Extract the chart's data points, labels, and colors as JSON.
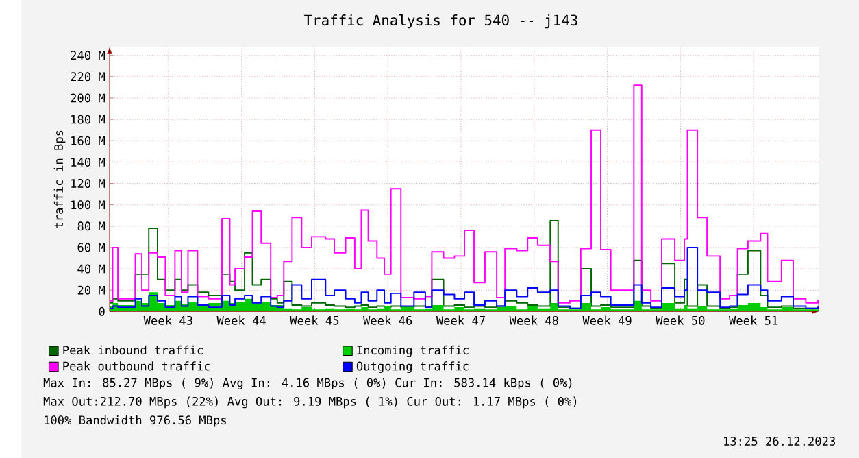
{
  "chart_data": {
    "type": "step",
    "title": "Traffic Analysis for 540 -- j143",
    "ylabel": "traffic in Bps",
    "x": [
      "2023-10-20T22:00",
      "2023-10-21T04:00",
      "2023-10-21T16:00",
      "2023-10-23T08:00",
      "2023-10-23T23:00",
      "2023-10-24T15:00",
      "2023-10-25T11:00",
      "2023-10-26T05:00",
      "2023-10-27T03:00",
      "2023-10-27T18:00",
      "2023-10-28T09:00",
      "2023-10-29T07:00",
      "2023-10-30T08:00",
      "2023-10-31T15:00",
      "2023-11-01T09:00",
      "2023-11-01T21:00",
      "2023-11-02T19:00",
      "2023-11-03T13:00",
      "2023-11-04T09:00",
      "2023-11-05T07:00",
      "2023-11-05T22:00",
      "2023-11-06T13:00",
      "2023-11-07T08:00",
      "2023-11-08T06:00",
      "2023-11-09T05:00",
      "2023-11-10T13:00",
      "2023-11-11T09:00",
      "2023-11-12T11:00",
      "2023-11-13T08:00",
      "2023-11-13T23:00",
      "2023-11-14T15:00",
      "2023-11-15T11:00",
      "2023-11-16T04:00",
      "2023-11-16T19:00",
      "2023-11-17T18:00",
      "2023-11-19T00:00",
      "2023-11-20T02:00",
      "2023-11-20T17:00",
      "2023-11-21T20:00",
      "2023-11-22T21:00",
      "2023-11-23T20:00",
      "2023-11-24T18:00",
      "2023-11-25T19:00",
      "2023-11-26T22:00",
      "2023-11-27T17:00",
      "2023-11-28T20:00",
      "2023-11-29T21:00",
      "2023-11-30T20:00",
      "2023-12-02T01:00",
      "2023-12-02T19:00",
      "2023-12-03T22:00",
      "2023-12-04T23:00",
      "2023-12-05T23:00",
      "2023-12-06T21:00",
      "2023-12-07T20:00",
      "2023-12-10T01:00",
      "2023-12-10T19:00",
      "2023-12-11T16:00",
      "2023-12-12T17:00",
      "2023-12-13T23:00",
      "2023-12-14T21:00",
      "2023-12-15T04:00",
      "2023-12-16T03:00",
      "2023-12-17T01:00",
      "2023-12-18T07:00",
      "2023-12-19T05:00",
      "2023-12-19T23:00",
      "2023-12-20T23:00",
      "2023-12-22T04:00",
      "2023-12-22T20:00",
      "2023-12-24T04:00",
      "2023-12-25T07:00",
      "2023-12-26T12:00",
      "2023-12-27T15:00",
      "2023-12-27T18:00"
    ],
    "series": [
      {
        "name": "Peak inbound traffic",
        "color": "#006600",
        "values": [
          8,
          12,
          10,
          35,
          null,
          78,
          30,
          20,
          30,
          20,
          25,
          18,
          15,
          35,
          28,
          20,
          55,
          25,
          30,
          12,
          8,
          28,
          6,
          5,
          8,
          6,
          5,
          4,
          5,
          6,
          4,
          5,
          4,
          5,
          4,
          5,
          4,
          30,
          5,
          6,
          4,
          5,
          4,
          5,
          10,
          8,
          6,
          5,
          85,
          4,
          3,
          40,
          5,
          6,
          4,
          48,
          5,
          3,
          45,
          8,
          30,
          5,
          25,
          5,
          3,
          4,
          35,
          57,
          15,
          4,
          5,
          3,
          3,
          3,
          2
        ]
      },
      {
        "name": "Incoming traffic",
        "type": "area",
        "color": "#00cc00",
        "values": [
          5,
          8,
          6,
          10,
          8,
          18,
          8,
          6,
          10,
          7,
          9,
          6,
          8,
          10,
          8,
          9,
          12,
          8,
          9,
          6,
          6,
          3,
          2,
          4,
          2,
          3,
          2,
          3,
          2,
          4,
          2,
          3,
          5,
          2,
          5,
          2,
          3,
          6,
          2,
          4,
          2,
          3,
          2,
          4,
          5,
          2,
          5,
          3,
          8,
          2,
          2,
          8,
          2,
          4,
          2,
          10,
          2,
          2,
          8,
          3,
          6,
          3,
          5,
          2,
          2,
          3,
          6,
          8,
          4,
          2,
          4,
          2,
          2,
          2,
          1
        ]
      },
      {
        "name": "Peak outbound traffic",
        "color": "#ff00ff",
        "values": [
          10,
          60,
          12,
          54,
          20,
          55,
          51,
          15,
          57,
          18,
          57,
          14,
          12,
          87,
          25,
          40,
          51,
          94,
          64,
          13,
          15,
          47,
          88,
          60,
          70,
          68,
          55,
          69,
          40,
          95,
          66,
          50,
          35,
          115,
          13,
          12,
          14,
          56,
          50,
          52,
          76,
          27,
          56,
          13,
          59,
          57,
          69,
          62,
          47,
          8,
          10,
          59,
          170,
          58,
          20,
          212,
          20,
          10,
          68,
          48,
          68,
          170,
          88,
          52,
          12,
          15,
          59,
          66,
          73,
          28,
          48,
          12,
          8,
          10,
          3
        ]
      },
      {
        "name": "Outgoing traffic",
        "color": "#0000ff",
        "values": [
          3,
          5,
          4,
          12,
          5,
          15,
          10,
          4,
          14,
          5,
          14,
          6,
          4,
          15,
          6,
          12,
          15,
          8,
          14,
          5,
          4,
          10,
          25,
          12,
          30,
          15,
          20,
          12,
          8,
          18,
          10,
          20,
          8,
          17,
          5,
          18,
          4,
          20,
          16,
          12,
          18,
          6,
          10,
          5,
          20,
          14,
          22,
          18,
          20,
          5,
          3,
          15,
          18,
          14,
          6,
          25,
          8,
          4,
          22,
          14,
          20,
          60,
          20,
          18,
          4,
          5,
          16,
          25,
          20,
          10,
          14,
          5,
          3,
          4,
          2
        ]
      }
    ],
    "xlim": [
      "2023-10-20T21:00",
      "2023-12-27T18:00"
    ],
    "ylim": [
      0,
      248
    ],
    "xticks": [
      {
        "value": "2023-10-26T12:00",
        "label": "Week 43"
      },
      {
        "value": "2023-11-02T12:00",
        "label": "Week 44"
      },
      {
        "value": "2023-11-09T12:00",
        "label": "Week 45"
      },
      {
        "value": "2023-11-16T12:00",
        "label": "Week 46"
      },
      {
        "value": "2023-11-23T12:00",
        "label": "Week 47"
      },
      {
        "value": "2023-11-30T12:00",
        "label": "Week 48"
      },
      {
        "value": "2023-12-07T12:00",
        "label": "Week 49"
      },
      {
        "value": "2023-12-14T12:00",
        "label": "Week 50"
      },
      {
        "value": "2023-12-21T12:00",
        "label": "Week 51"
      }
    ],
    "yticks": [
      0,
      {
        "value": 20,
        "label": "20 M"
      },
      {
        "value": 40,
        "label": "40 M"
      },
      {
        "value": 60,
        "label": "60 M"
      },
      {
        "value": 80,
        "label": "80 M"
      },
      {
        "value": 100,
        "label": "100 M"
      },
      {
        "value": 120,
        "label": "120 M"
      },
      {
        "value": 140,
        "label": "140 M"
      },
      {
        "value": 160,
        "label": "160 M"
      },
      {
        "value": 180,
        "label": "180 M"
      },
      {
        "value": 200,
        "label": "200 M"
      },
      {
        "value": 220,
        "label": "220 M"
      },
      {
        "value": 240,
        "label": "240 M"
      }
    ],
    "grid": true,
    "legend": "bottom",
    "annotations": [
      "Max In: 85.27 MBps ( 9%) Avg In: 4.16 MBps ( 0%) Cur In: 583.14 kBps ( 0%)",
      "Max Out:212.70 MBps (22%) Avg Out: 9.19 MBps ( 1%) Cur Out: 1.17 MBps ( 0%)",
      "100% Bandwidth 976.56 MBps",
      "13:25 26.12.2023"
    ]
  }
}
